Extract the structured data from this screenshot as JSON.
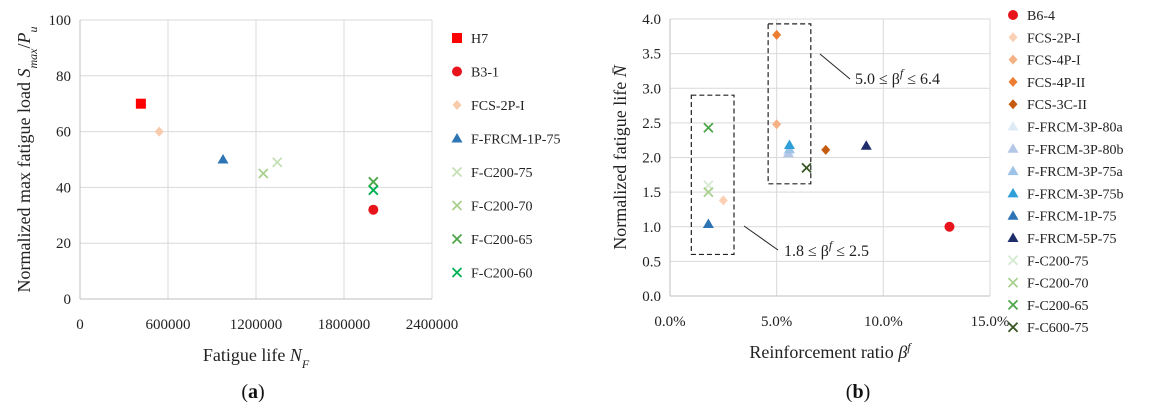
{
  "chart_data": [
    {
      "type": "scatter",
      "panel_label": "(a)",
      "xlabel": "Fatigue life N_F",
      "ylabel": "Normalized max fatigue load S_max/P_u",
      "xlim": [
        0,
        2400000
      ],
      "ylim": [
        0,
        100
      ],
      "xticks": [
        0,
        600000,
        1200000,
        1800000,
        2400000
      ],
      "yticks": [
        0,
        20,
        40,
        60,
        80,
        100
      ],
      "xtick_labels": [
        "0",
        "600000",
        "1200000",
        "1800000",
        "2400000"
      ],
      "ytick_labels": [
        "0",
        "20",
        "40",
        "60",
        "80",
        "100"
      ],
      "grid": true,
      "legend_position": "right",
      "series": [
        {
          "name": "H7",
          "marker": "square",
          "color": "#ff0000",
          "points": [
            [
              415000,
              70
            ]
          ]
        },
        {
          "name": "B3-1",
          "marker": "circle",
          "color": "#e8141c",
          "points": [
            [
              2000000,
              32
            ]
          ]
        },
        {
          "name": "FCS-2P-I",
          "marker": "diamond",
          "color": "#f8cbad",
          "points": [
            [
              540000,
              60
            ]
          ]
        },
        {
          "name": "F-FRCM-1P-75",
          "marker": "triangle",
          "color": "#2e75b6",
          "points": [
            [
              975000,
              50
            ]
          ]
        },
        {
          "name": "F-C200-75",
          "marker": "x",
          "color": "#c5e0b4",
          "points": [
            [
              1345000,
              49
            ]
          ]
        },
        {
          "name": "F-C200-70",
          "marker": "x",
          "color": "#a9d18e",
          "points": [
            [
              1250000,
              45
            ]
          ]
        },
        {
          "name": "F-C200-65",
          "marker": "x",
          "color": "#4ea64a",
          "points": [
            [
              2000000,
              42
            ]
          ]
        },
        {
          "name": "F-C200-60",
          "marker": "x",
          "color": "#00b050",
          "points": [
            [
              2000000,
              39
            ]
          ]
        }
      ]
    },
    {
      "type": "scatter",
      "panel_label": "(b)",
      "xlabel": "Reinforcement ratio β^f",
      "ylabel": "Normalized fatigue life N̄",
      "xlim": [
        0,
        15
      ],
      "ylim": [
        0,
        4
      ],
      "xticks": [
        0,
        5,
        10,
        15
      ],
      "yticks": [
        0,
        0.5,
        1,
        1.5,
        2,
        2.5,
        3,
        3.5,
        4
      ],
      "xtick_labels": [
        "0.0%",
        "5.0%",
        "10.0%",
        "15.0%"
      ],
      "ytick_labels": [
        "0.0",
        "0.5",
        "1.0",
        "1.5",
        "2.0",
        "2.5",
        "3.0",
        "3.5",
        "4.0"
      ],
      "grid": true,
      "legend_position": "right",
      "annotations": [
        {
          "text_left": "5.0 ≤ β",
          "sup": "f",
          "text_right": " ≤ 6.4",
          "box": {
            "x": [
              4.6,
              6.6
            ],
            "y": [
              1.62,
              3.93
            ]
          }
        },
        {
          "text_left": "1.8 ≤ β",
          "sup": "f",
          "text_right": " ≤ 2.5",
          "box": {
            "x": [
              1.0,
              3.0
            ],
            "y": [
              0.6,
              2.9
            ]
          }
        }
      ],
      "series": [
        {
          "name": "B6-4",
          "marker": "circle",
          "color": "#e8141c",
          "points": [
            [
              13.1,
              1.0
            ]
          ]
        },
        {
          "name": "FCS-2P-I",
          "marker": "diamond",
          "color": "#fbd0b4",
          "points": [
            [
              2.5,
              1.38
            ]
          ]
        },
        {
          "name": "FCS-4P-I",
          "marker": "diamond",
          "color": "#f4b183",
          "points": [
            [
              5.0,
              2.48
            ]
          ]
        },
        {
          "name": "FCS-4P-II",
          "marker": "diamond",
          "color": "#ed7d31",
          "points": [
            [
              5.0,
              3.77
            ]
          ]
        },
        {
          "name": "FCS-3C-II",
          "marker": "diamond",
          "color": "#c55a11",
          "points": [
            [
              7.3,
              2.11
            ]
          ]
        },
        {
          "name": "F-FRCM-3P-80a",
          "marker": "triangle",
          "color": "#deebf7",
          "points": [
            [
              5.55,
              2.1
            ]
          ]
        },
        {
          "name": "F-FRCM-3P-80b",
          "marker": "triangle",
          "color": "#b4c7e7",
          "points": [
            [
              5.55,
              2.06
            ]
          ]
        },
        {
          "name": "F-FRCM-3P-75a",
          "marker": "triangle",
          "color": "#9dc3e6",
          "points": [
            [
              5.6,
              2.12
            ]
          ]
        },
        {
          "name": "F-FRCM-3P-75b",
          "marker": "triangle",
          "color": "#2e9fd9",
          "points": [
            [
              5.6,
              2.18
            ]
          ]
        },
        {
          "name": "F-FRCM-1P-75",
          "marker": "triangle",
          "color": "#2e75b6",
          "points": [
            [
              1.8,
              1.04
            ]
          ]
        },
        {
          "name": "F-FRCM-5P-75",
          "marker": "triangle",
          "color": "#1f2d6b",
          "points": [
            [
              9.2,
              2.17
            ]
          ]
        },
        {
          "name": "F-C200-75",
          "marker": "x",
          "color": "#d5ead0",
          "points": [
            [
              1.8,
              1.6
            ]
          ]
        },
        {
          "name": "F-C200-70",
          "marker": "x",
          "color": "#a9d18e",
          "points": [
            [
              1.8,
              1.5
            ]
          ]
        },
        {
          "name": "F-C200-65",
          "marker": "x",
          "color": "#4ea64a",
          "points": [
            [
              1.8,
              2.43
            ]
          ]
        },
        {
          "name": "F-C600-75",
          "marker": "x",
          "color": "#375623",
          "points": [
            [
              6.4,
              1.85
            ]
          ]
        }
      ]
    }
  ]
}
